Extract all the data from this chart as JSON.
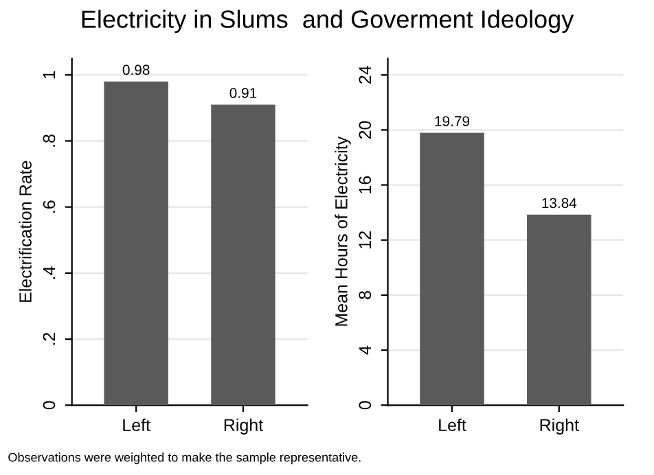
{
  "chart_data": [
    {
      "type": "bar",
      "title": "Electricity in Slums  and Goverment Ideology",
      "ylabel": "Electrification Rate",
      "categories": [
        "Left",
        "Right"
      ],
      "series": [
        {
          "color": "#5a5a5a",
          "values": [
            0.98,
            0.91
          ]
        }
      ],
      "value_labels": [
        "0.98",
        "0.91"
      ],
      "ylim": [
        0,
        1.05
      ],
      "yticks": [
        0,
        {
          "value": 0.2,
          "label": ".2"
        },
        {
          "value": 0.4,
          "label": ".4"
        },
        {
          "value": 0.6,
          "label": ".6"
        },
        {
          "value": 0.8,
          "label": ".8"
        },
        1
      ],
      "grid": "y",
      "annotations": [
        "Observations were weighted to make the sample representative."
      ]
    },
    {
      "type": "bar",
      "ylabel": "Mean Hours of Electricity",
      "categories": [
        "Left",
        "Right"
      ],
      "series": [
        {
          "color": "#5a5a5a",
          "values": [
            19.79,
            13.84
          ]
        }
      ],
      "value_labels": [
        "19.79",
        "13.84"
      ],
      "ylim": [
        0,
        25.2
      ],
      "yticks": [
        0,
        4,
        8,
        12,
        16,
        20,
        24
      ],
      "grid": "y"
    }
  ]
}
